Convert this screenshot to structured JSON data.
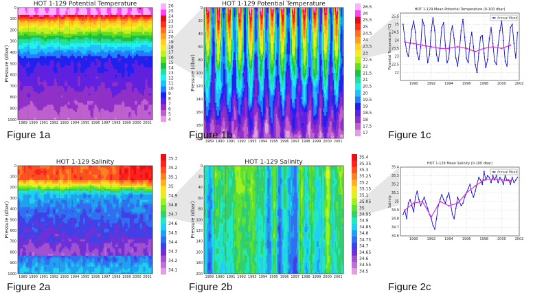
{
  "labels": {
    "fig1a": "Figure 1a",
    "fig1b": "Figure 1b",
    "fig1c": "Figure 1c",
    "fig2a": "Figure 2a",
    "fig2b": "Figure 2b",
    "fig2c": "Figure 2c"
  },
  "palette_temp": [
    "#e0a0e0",
    "#c060d0",
    "#9030c8",
    "#6020e0",
    "#2020f0",
    "#2080ff",
    "#20c0ff",
    "#20f0f0",
    "#20e0a0",
    "#20c040",
    "#60e020",
    "#c0f020",
    "#f0f020",
    "#ffd020",
    "#ffa020",
    "#ff7020",
    "#ff3020",
    "#e01010",
    "#ff40ff",
    "#ffb0ff"
  ],
  "palette_sal": [
    "#e0a0e0",
    "#c070d8",
    "#a050d0",
    "#7030d8",
    "#4040e8",
    "#3070f0",
    "#20a0f0",
    "#20d0f0",
    "#20e8c0",
    "#30d070",
    "#60e030",
    "#a0f020",
    "#e0f020",
    "#ffe020",
    "#ffb020",
    "#ff8020",
    "#ff5020",
    "#ff2020",
    "#e81010"
  ],
  "chart_data": [
    {
      "id": "1a",
      "type": "heatmap",
      "title": "HOT 1-129 Potential Temperature",
      "ylabel": "Pressure (dbar)",
      "xlim": [
        1988.8,
        2001.8
      ],
      "ylim": [
        1000,
        0
      ],
      "xticks": [
        "1989",
        "1990",
        "1991",
        "1992",
        "1993",
        "1994",
        "1995",
        "1996",
        "1997",
        "1998",
        "1999",
        "2000",
        "2001"
      ],
      "yticks": [
        0,
        100,
        200,
        300,
        400,
        500,
        600,
        700,
        800,
        900,
        1000
      ],
      "colorbar": [
        4,
        5,
        6,
        7,
        8,
        9,
        10,
        11,
        12,
        13,
        14,
        15,
        16,
        17,
        18,
        19,
        20,
        21,
        22,
        23,
        24,
        25,
        26
      ]
    },
    {
      "id": "1b",
      "type": "heatmap",
      "title": "HOT 1-129 Potential Temperature",
      "ylabel": "Pressure (dbar)",
      "xlim": [
        1988.8,
        2001.8
      ],
      "ylim": [
        200,
        0
      ],
      "xticks": [
        "1989",
        "1990",
        "1991",
        "1992",
        "1993",
        "1994",
        "1995",
        "1996",
        "1997",
        "1998",
        "1999",
        "2000",
        "2001"
      ],
      "yticks": [
        0,
        20,
        40,
        60,
        80,
        100,
        120,
        140,
        160,
        180,
        200
      ],
      "colorbar": [
        17,
        17.5,
        18,
        18.5,
        19,
        19.5,
        20,
        20.5,
        21,
        21.5,
        22,
        22.5,
        23,
        23.5,
        24,
        24.5,
        25,
        25.5,
        26,
        26.5
      ]
    },
    {
      "id": "1c",
      "type": "line",
      "title": "HOT 1-129 Mean Potential Temperature (0-100 dbar)",
      "ylabel": "Potential Temperature (°C)",
      "xlim": [
        1988.5,
        2002
      ],
      "ylim": [
        21.5,
        25.7
      ],
      "xticks": [
        "1990",
        "1992",
        "1994",
        "1996",
        "1998",
        "2000",
        "2002"
      ],
      "yticks": [
        22,
        22.5,
        23,
        23.5,
        24,
        24.5,
        25,
        25.5
      ],
      "legend": "Annual Mean",
      "legend_position": "top-right",
      "series": [
        {
          "x": [
            1988.8,
            1989.0,
            1989.2,
            1989.4,
            1989.6,
            1989.8,
            1990.0,
            1990.2,
            1990.4,
            1990.6,
            1990.8,
            1991.0,
            1991.2,
            1991.4,
            1991.6,
            1991.8,
            1992.0,
            1992.2,
            1992.4,
            1992.6,
            1992.8,
            1993.0,
            1993.2,
            1993.4,
            1993.6,
            1993.8,
            1994.0,
            1994.2,
            1994.4,
            1994.6,
            1994.8,
            1995.0,
            1995.2,
            1995.4,
            1995.6,
            1995.8,
            1996.0,
            1996.2,
            1996.4,
            1996.6,
            1996.8,
            1997.0,
            1997.2,
            1997.4,
            1997.6,
            1997.8,
            1998.0,
            1998.2,
            1998.4,
            1998.6,
            1998.8,
            1999.0,
            1999.2,
            1999.4,
            1999.6,
            1999.8,
            2000.0,
            2000.2,
            2000.4,
            2000.6,
            2000.8,
            2001.0,
            2001.2,
            2001.4,
            2001.6,
            2001.8
          ],
          "values": [
            25.0,
            24.1,
            23.3,
            23.0,
            23.8,
            24.7,
            25.2,
            24.5,
            23.2,
            22.8,
            23.6,
            25.3,
            24.9,
            23.6,
            22.6,
            23.1,
            24.6,
            25.4,
            24.6,
            23.1,
            22.7,
            23.5,
            24.8,
            25.1,
            23.7,
            22.6,
            22.9,
            24.4,
            24.9,
            24.1,
            22.9,
            22.4,
            23.4,
            24.6,
            25.3,
            24.2,
            22.9,
            22.6,
            23.8,
            24.5,
            23.6,
            22.5,
            22.0,
            23.2,
            24.2,
            24.3,
            23.2,
            22.3,
            22.8,
            24.1,
            24.8,
            23.8,
            22.7,
            22.5,
            23.7,
            24.6,
            25.2,
            24.0,
            22.7,
            22.4,
            23.6,
            24.8,
            25.0,
            23.8,
            22.9,
            24.5
          ]
        },
        {
          "name": "Annual Mean",
          "x": [
            1989,
            1990,
            1991,
            1992,
            1993,
            1994,
            1995,
            1996,
            1997,
            1998,
            1999,
            2000,
            2001
          ],
          "values": [
            23.9,
            23.8,
            23.7,
            23.6,
            23.5,
            23.5,
            23.6,
            23.5,
            23.3,
            23.5,
            23.6,
            23.5,
            23.7
          ]
        }
      ]
    },
    {
      "id": "2a",
      "type": "heatmap",
      "title": "HOT 1-129 Salinity",
      "ylabel": "Pressure (dbar)",
      "xlim": [
        1988.8,
        2001.8
      ],
      "ylim": [
        1000,
        0
      ],
      "xticks": [
        "1989",
        "1990",
        "1991",
        "1992",
        "1993",
        "1994",
        "1995",
        "1996",
        "1997",
        "1998",
        "1999",
        "2000",
        "2001"
      ],
      "yticks": [
        0,
        100,
        200,
        300,
        400,
        500,
        600,
        700,
        800,
        900,
        1000
      ],
      "colorbar": [
        34.1,
        34.2,
        34.3,
        34.4,
        34.5,
        34.6,
        34.7,
        34.8,
        34.9,
        35,
        35.1,
        35.2,
        35.3
      ]
    },
    {
      "id": "2b",
      "type": "heatmap",
      "title": "HOT 1-129 Salinity",
      "ylabel": "Pressure (dbar)",
      "xlim": [
        1988.8,
        2001.8
      ],
      "ylim": [
        200,
        0
      ],
      "xticks": [
        "1989",
        "1990",
        "1991",
        "1992",
        "1993",
        "1994",
        "1995",
        "1996",
        "1997",
        "1998",
        "1999",
        "2000",
        "2001"
      ],
      "yticks": [
        0,
        20,
        40,
        60,
        80,
        100,
        120,
        140,
        160,
        180,
        200
      ],
      "colorbar": [
        34.5,
        34.55,
        34.6,
        34.65,
        34.7,
        34.75,
        34.8,
        34.85,
        34.9,
        34.95,
        35,
        35.05,
        35.1,
        35.15,
        35.2,
        35.25,
        35.3,
        35.35,
        35.4
      ]
    },
    {
      "id": "2c",
      "type": "line",
      "title": "HOT 1-129 Mean Salinity (0-100 dbar)",
      "ylabel": "Salinity",
      "xlim": [
        1988.5,
        2002
      ],
      "ylim": [
        34.6,
        35.4
      ],
      "xticks": [
        "1990",
        "1992",
        "1994",
        "1996",
        "1998",
        "2000",
        "2002"
      ],
      "yticks": [
        34.6,
        34.7,
        34.8,
        34.9,
        35,
        35.1,
        35.2,
        35.3,
        35.4
      ],
      "legend": "Annual Mean",
      "legend_position": "top-right",
      "series": [
        {
          "x": [
            1988.8,
            1989.0,
            1989.2,
            1989.4,
            1989.6,
            1989.8,
            1990.0,
            1990.2,
            1990.4,
            1990.6,
            1990.8,
            1991.0,
            1991.2,
            1991.4,
            1991.6,
            1991.8,
            1992.0,
            1992.2,
            1992.4,
            1992.6,
            1992.8,
            1993.0,
            1993.2,
            1993.4,
            1993.6,
            1993.8,
            1994.0,
            1994.2,
            1994.4,
            1994.6,
            1994.8,
            1995.0,
            1995.2,
            1995.4,
            1995.6,
            1995.8,
            1996.0,
            1996.2,
            1996.4,
            1996.6,
            1996.8,
            1997.0,
            1997.2,
            1997.4,
            1997.6,
            1997.8,
            1998.0,
            1998.2,
            1998.4,
            1998.6,
            1998.8,
            1999.0,
            1999.2,
            1999.4,
            1999.6,
            1999.8,
            2000.0,
            2000.2,
            2000.4,
            2000.6,
            2000.8,
            2001.0,
            2001.2,
            2001.4,
            2001.6,
            2001.8
          ],
          "values": [
            34.85,
            34.9,
            34.8,
            34.98,
            35.02,
            34.95,
            34.88,
            35.05,
            35.12,
            35.02,
            34.95,
            35.0,
            35.05,
            34.98,
            34.92,
            34.85,
            34.8,
            34.72,
            34.68,
            34.8,
            34.95,
            35.02,
            35.08,
            35.02,
            34.98,
            35.05,
            35.1,
            34.98,
            34.85,
            34.8,
            34.92,
            35.05,
            35.0,
            34.95,
            34.98,
            35.05,
            35.1,
            35.15,
            35.2,
            35.1,
            35.05,
            35.12,
            35.2,
            35.28,
            35.25,
            35.2,
            35.35,
            35.25,
            35.3,
            35.28,
            35.22,
            35.3,
            35.25,
            35.3,
            35.22,
            35.28,
            35.25,
            35.2,
            35.3,
            35.25,
            35.25,
            35.2,
            35.28,
            35.22,
            35.25,
            35.28
          ]
        },
        {
          "name": "Annual Mean",
          "x": [
            1989,
            1990,
            1991,
            1992,
            1993,
            1994,
            1995,
            1996,
            1997,
            1998,
            1999,
            2000,
            2001
          ],
          "values": [
            34.9,
            34.98,
            35.0,
            34.82,
            35.0,
            34.95,
            34.98,
            35.1,
            35.18,
            35.25,
            35.26,
            35.25,
            35.24
          ]
        }
      ]
    }
  ]
}
